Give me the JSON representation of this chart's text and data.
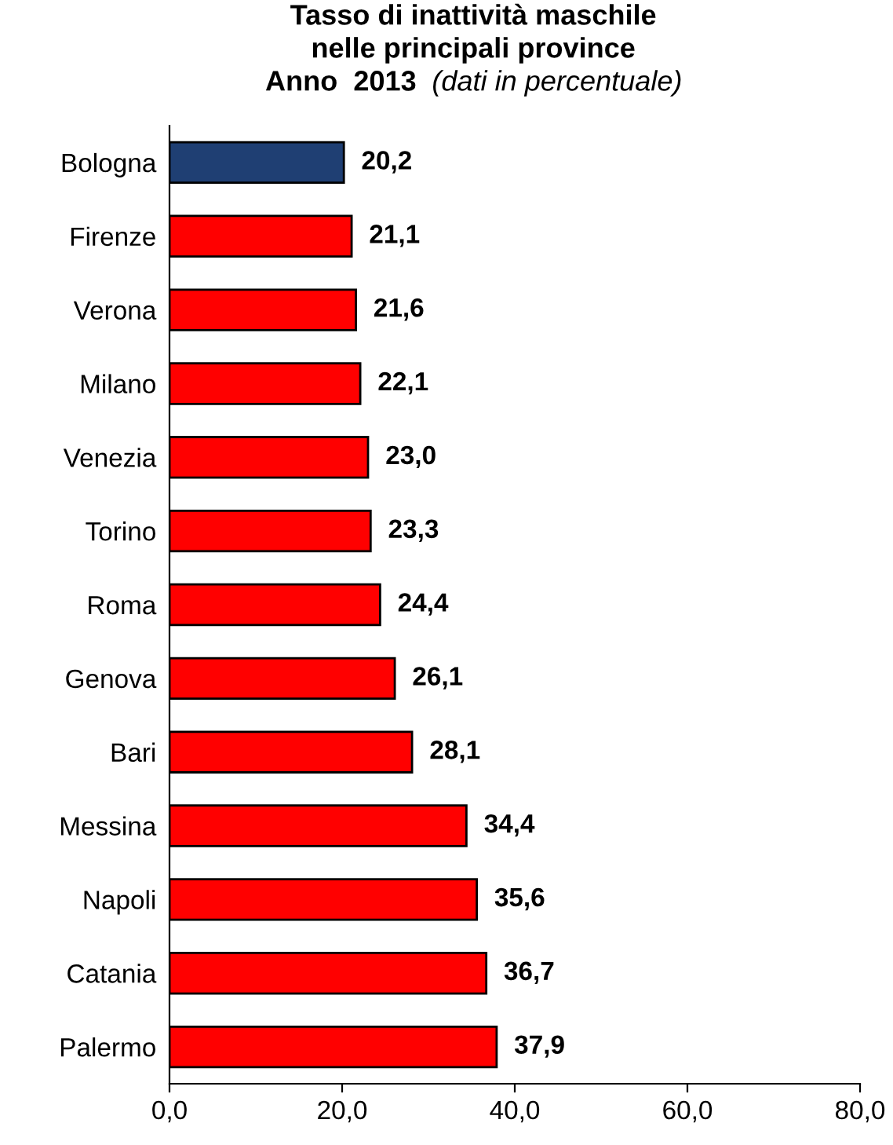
{
  "chart_data": {
    "type": "bar",
    "orientation": "horizontal",
    "title": "Tasso di inattività maschile\nnelle principali province\nAnno  2013",
    "subtitle": "(dati in percentuale)",
    "categories": [
      "Bologna",
      "Firenze",
      "Verona",
      "Milano",
      "Venezia",
      "Torino",
      "Roma",
      "Genova",
      "Bari",
      "Messina",
      "Napoli",
      "Catania",
      "Palermo"
    ],
    "values": [
      20.2,
      21.1,
      21.6,
      22.1,
      23.0,
      23.3,
      24.4,
      26.1,
      28.1,
      34.4,
      35.6,
      36.7,
      37.9
    ],
    "colors": [
      "#1f3f73",
      "#ff0000",
      "#ff0000",
      "#ff0000",
      "#ff0000",
      "#ff0000",
      "#ff0000",
      "#ff0000",
      "#ff0000",
      "#ff0000",
      "#ff0000",
      "#ff0000",
      "#ff0000"
    ],
    "value_labels": [
      "20,2",
      "21,1",
      "21,6",
      "22,1",
      "23,0",
      "23,3",
      "24,4",
      "26,1",
      "28,1",
      "34,4",
      "35,6",
      "36,7",
      "37,9"
    ],
    "xlim": [
      0,
      80
    ],
    "xticks": [
      {
        "value": 0,
        "label": "0,0"
      },
      {
        "value": 20,
        "label": "20,0"
      },
      {
        "value": 40,
        "label": "40,0"
      },
      {
        "value": 60,
        "label": "60,0"
      },
      {
        "value": 80,
        "label": "80,0"
      }
    ],
    "grid": false,
    "legend": false
  }
}
